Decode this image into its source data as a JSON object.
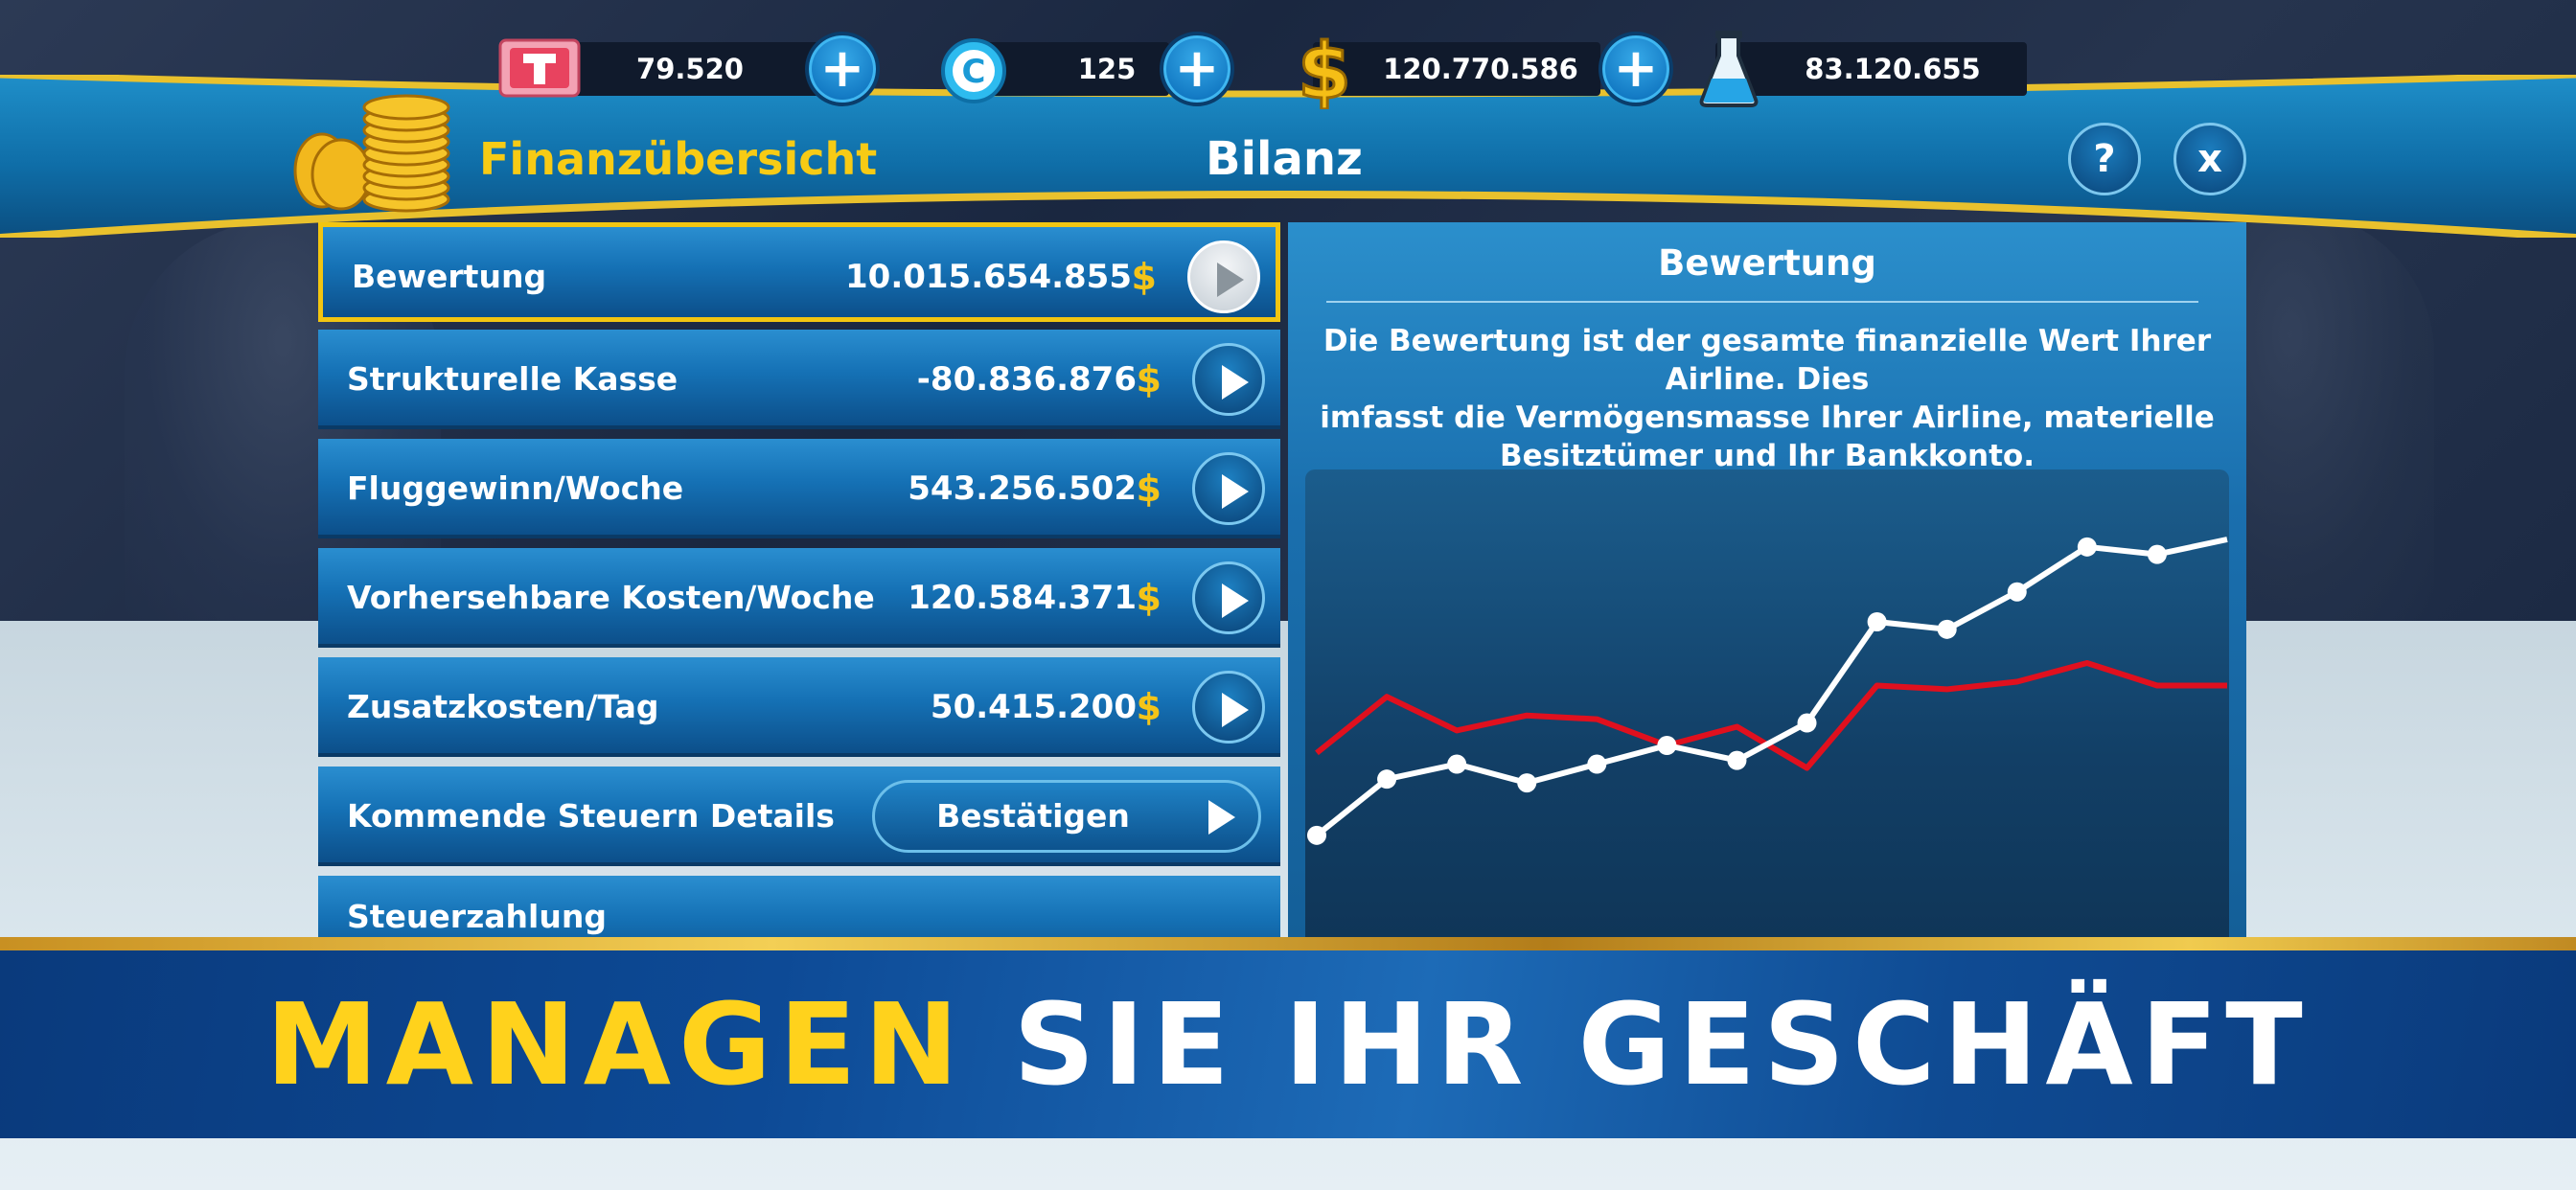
{
  "resources": [
    {
      "icon": "ticket-icon",
      "value": "79.520"
    },
    {
      "icon": "c-coin-icon",
      "value": "125"
    },
    {
      "icon": "dollar-icon",
      "value": "120.770.586"
    },
    {
      "icon": "flask-icon",
      "value": "83.120.655"
    }
  ],
  "header": {
    "title": "Finanzübersicht",
    "section": "Bilanz",
    "help_label": "?",
    "close_label": "x"
  },
  "rows": [
    {
      "label": "Bewertung",
      "value": "10.015.654.855",
      "currency": "$"
    },
    {
      "label": "Strukturelle Kasse",
      "value": "-80.836.876",
      "currency": "$"
    },
    {
      "label": "Fluggewinn/Woche",
      "value": "543.256.502",
      "currency": "$"
    },
    {
      "label": "Vorhersehbare Kosten/Woche",
      "value": "120.584.371",
      "currency": "$"
    },
    {
      "label": "Zusatzkosten/Tag",
      "value": "50.415.200",
      "currency": "$"
    },
    {
      "label": "Kommende Steuern Details",
      "button": "Bestätigen"
    },
    {
      "label": "Steuerzahlung"
    }
  ],
  "panel": {
    "title": "Bewertung",
    "description_line1": "Die Bewertung ist der gesamte finanzielle Wert Ihrer Airline. Dies",
    "description_line2": "imfasst die Vermögensmasse Ihrer Airline, materielle",
    "description_line3": "Besitztümer und Ihr Bankkonto."
  },
  "chart_data": {
    "type": "line",
    "x": [
      1,
      2,
      3,
      4,
      5,
      6,
      7,
      8,
      9,
      10,
      11,
      12,
      13,
      14
    ],
    "series": [
      {
        "color": "#ffffff",
        "values": [
          20,
          35,
          39,
          34,
          39,
          44,
          40,
          50,
          77,
          75,
          85,
          97,
          95,
          99
        ]
      },
      {
        "color": "#e0101e",
        "values": [
          42,
          57,
          48,
          52,
          51,
          44,
          49,
          38,
          60,
          59,
          61,
          66,
          60,
          60
        ]
      }
    ],
    "ylim": [
      0,
      110
    ],
    "grid": false
  },
  "banner": {
    "highlight": "MANAGEN",
    "rest": " SIE IHR GESCHÄFT"
  },
  "colors": {
    "accent_gold": "#f7cb15",
    "line_white": "#ffffff",
    "line_red": "#e0101e",
    "panel_blue": "#1a6fae"
  }
}
